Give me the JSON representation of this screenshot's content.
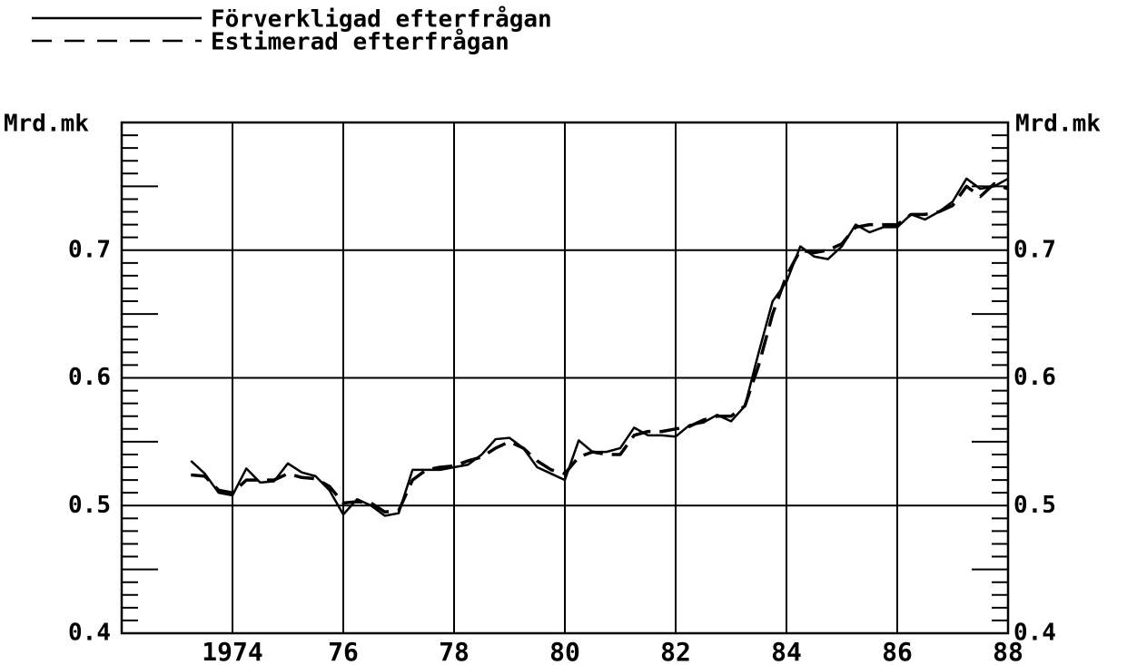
{
  "chart_data": {
    "type": "line",
    "ylabel": "Mrd.mk",
    "x": [
      1973.25,
      1973.5,
      1973.75,
      1974,
      1974.25,
      1974.5,
      1974.75,
      1975,
      1975.25,
      1975.5,
      1975.75,
      1976,
      1976.25,
      1976.5,
      1976.75,
      1977,
      1977.25,
      1977.5,
      1977.75,
      1978,
      1978.25,
      1978.5,
      1978.75,
      1979,
      1979.25,
      1979.5,
      1979.75,
      1980,
      1980.25,
      1980.5,
      1980.75,
      1981,
      1981.25,
      1981.5,
      1981.75,
      1982,
      1982.25,
      1982.5,
      1982.75,
      1983,
      1983.25,
      1983.5,
      1983.75,
      1984,
      1984.25,
      1984.5,
      1984.75,
      1985,
      1985.25,
      1985.5,
      1985.75,
      1986,
      1986.25,
      1986.5,
      1986.75,
      1987,
      1987.25,
      1987.5,
      1987.75,
      1988
    ],
    "series": [
      {
        "name": "Förverkligad efterfrågan",
        "color": "#000000",
        "dash": "solid",
        "values": [
          0.535,
          0.525,
          0.51,
          0.508,
          0.529,
          0.518,
          0.519,
          0.533,
          0.526,
          0.523,
          0.512,
          0.493,
          0.505,
          0.5,
          0.492,
          0.494,
          0.528,
          0.528,
          0.528,
          0.53,
          0.532,
          0.54,
          0.552,
          0.553,
          0.545,
          0.53,
          0.525,
          0.52,
          0.551,
          0.542,
          0.542,
          0.545,
          0.561,
          0.555,
          0.555,
          0.554,
          0.563,
          0.565,
          0.571,
          0.566,
          0.578,
          0.62,
          0.66,
          0.675,
          0.703,
          0.695,
          0.693,
          0.703,
          0.72,
          0.714,
          0.718,
          0.718,
          0.728,
          0.724,
          0.73,
          0.738,
          0.756,
          0.748,
          0.75,
          0.756
        ]
      },
      {
        "name": "Estimerad efterfrågan",
        "color": "#000000",
        "dash": "dashed",
        "values": [
          0.524,
          0.523,
          0.512,
          0.51,
          0.52,
          0.52,
          0.52,
          0.525,
          0.522,
          0.521,
          0.515,
          0.502,
          0.503,
          0.502,
          0.495,
          0.496,
          0.52,
          0.528,
          0.53,
          0.531,
          0.535,
          0.538,
          0.545,
          0.55,
          0.545,
          0.535,
          0.528,
          0.525,
          0.538,
          0.542,
          0.54,
          0.54,
          0.555,
          0.558,
          0.558,
          0.56,
          0.562,
          0.567,
          0.57,
          0.57,
          0.578,
          0.61,
          0.65,
          0.68,
          0.7,
          0.698,
          0.7,
          0.705,
          0.718,
          0.72,
          0.72,
          0.72,
          0.728,
          0.728,
          0.73,
          0.735,
          0.75,
          0.742,
          0.752,
          0.748
        ]
      }
    ],
    "xlim": [
      1972,
      1988
    ],
    "xticks": [
      1974,
      {
        "value": 1976,
        "label": "76"
      },
      {
        "value": 1978,
        "label": "78"
      },
      {
        "value": 1980,
        "label": "80"
      },
      {
        "value": 1982,
        "label": "82"
      },
      {
        "value": 1984,
        "label": "84"
      },
      {
        "value": 1986,
        "label": "86"
      },
      {
        "value": 1988,
        "label": "88"
      }
    ],
    "ylim": [
      0.4,
      0.8
    ],
    "yticks": [
      0.4,
      0.5,
      0.6,
      0.7
    ],
    "grid": true,
    "legend": "top-left"
  }
}
